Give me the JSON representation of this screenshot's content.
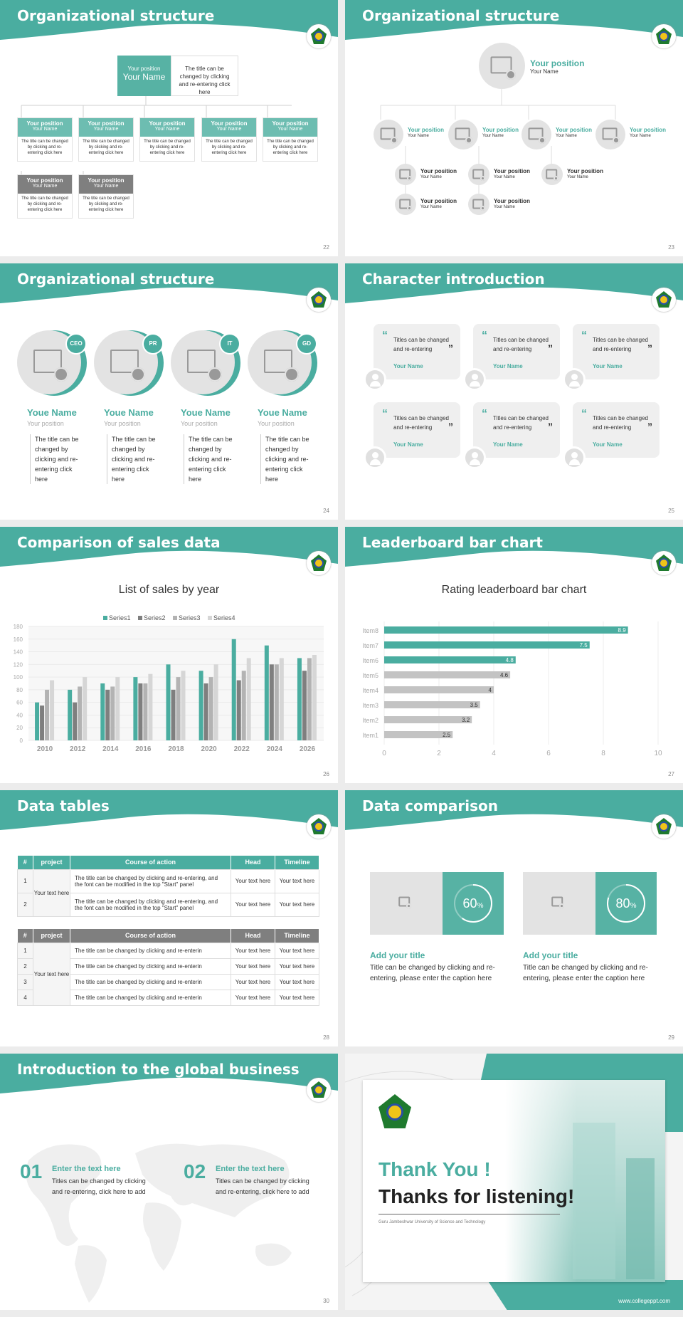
{
  "s22": {
    "title": "Organizational structure",
    "page": "22",
    "top_pos": "Your position",
    "top_name": "Your Name",
    "top_text": "The title can be changed by clicking and re-entering click here",
    "cards": [
      {
        "pos": "Your position",
        "name": "Your Name",
        "text": "The title can be changed by clicking and re-entering click here"
      },
      {
        "pos": "Your position",
        "name": "Your Name",
        "text": "The title can be changed by clicking and re-entering click here"
      },
      {
        "pos": "Your position",
        "name": "Your Name",
        "text": "The title can be changed by clicking and re-entering click here"
      },
      {
        "pos": "Your position",
        "name": "Your Name",
        "text": "The title can be changed by clicking and re-entering click here"
      },
      {
        "pos": "Your position",
        "name": "Your Name",
        "text": "The title can be changed by clicking and re-entering click here"
      }
    ],
    "gcards": [
      {
        "pos": "Your position",
        "name": "Your Name",
        "text": "The title can be changed by clicking and re-entering click here"
      },
      {
        "pos": "Your position",
        "name": "Your Name",
        "text": "The title can be changed by clicking and re-entering click here"
      }
    ]
  },
  "s23": {
    "title": "Organizational structure",
    "page": "23",
    "top_pos": "Your position",
    "top_name": "Your Name",
    "row": [
      {
        "pos": "Your position",
        "name": "Your Name"
      },
      {
        "pos": "Your position",
        "name": "Your Name"
      },
      {
        "pos": "Your position",
        "name": "Your Name"
      },
      {
        "pos": "Your position",
        "name": "Your Name"
      }
    ],
    "sub": [
      {
        "pos": "Your position",
        "name": "Your Name"
      },
      {
        "pos": "Your position",
        "name": "Your Name"
      },
      {
        "pos": "Your position",
        "name": "Your Name"
      },
      {
        "pos": "Your position",
        "name": "Your Name"
      },
      {
        "pos": "Your position",
        "name": "Your Name"
      }
    ]
  },
  "s24": {
    "title": "Organizational structure",
    "page": "24",
    "people": [
      {
        "badge": "CEO",
        "name": "Youe Name",
        "pos": "Your position",
        "text": "The title can be changed by clicking and re-entering click here"
      },
      {
        "badge": "PR",
        "name": "Youe Name",
        "pos": "Your position",
        "text": "The title can be changed by clicking and re-entering click here"
      },
      {
        "badge": "IT",
        "name": "Youe Name",
        "pos": "Your position",
        "text": "The title can be changed by clicking and re-entering click here"
      },
      {
        "badge": "GD",
        "name": "Youe Name",
        "pos": "Your position",
        "text": "The title can be changed by clicking and re-entering click here"
      }
    ]
  },
  "s25": {
    "title": "Character introduction",
    "page": "25",
    "quote_open": "“",
    "quote_close": "”",
    "cards": [
      {
        "text": "Titles can be changed and re-entering",
        "name": "Your Name"
      },
      {
        "text": "Titles can be changed and re-entering",
        "name": "Your Name"
      },
      {
        "text": "Titles can be changed and re-entering",
        "name": "Your Name"
      },
      {
        "text": "Titles can be changed and re-entering",
        "name": "Your Name"
      },
      {
        "text": "Titles can be changed and re-entering",
        "name": "Your Name"
      },
      {
        "text": "Titles can be changed and re-entering",
        "name": "Your Name"
      }
    ]
  },
  "s26": {
    "title": "Comparison of sales data",
    "page": "26"
  },
  "s27": {
    "title": "Leaderboard bar chart",
    "page": "27"
  },
  "s28": {
    "title": "Data tables",
    "page": "28",
    "t1": {
      "headers": [
        "#",
        "project",
        "Course of action",
        "Head",
        "Timeline"
      ],
      "project": "Your text here",
      "rows": [
        {
          "n": "1",
          "course": "The title can be changed by clicking and re-entering, and the font can be modified in the top \"Start\" panel",
          "head": "Your text here",
          "time": "Your text here"
        },
        {
          "n": "2",
          "course": "The title can be changed by clicking and re-entering, and the font can be modified in the top \"Start\" panel",
          "head": "Your text here",
          "time": "Your text here"
        }
      ]
    },
    "t2": {
      "headers": [
        "#",
        "project",
        "Course of action",
        "Head",
        "Timeline"
      ],
      "project": "Your text here",
      "rows": [
        {
          "n": "1",
          "course": "The title can be changed by clicking and re-enterin",
          "head": "Your text here",
          "time": "Your text here"
        },
        {
          "n": "2",
          "course": "The title can be changed by clicking and re-enterin",
          "head": "Your text here",
          "time": "Your text here"
        },
        {
          "n": "3",
          "course": "The title can be changed by clicking and re-enterin",
          "head": "Your text here",
          "time": "Your text here"
        },
        {
          "n": "4",
          "course": "The title can be changed by clicking and re-enterin",
          "head": "Your text here",
          "time": "Your text here"
        }
      ]
    }
  },
  "s29": {
    "title": "Data comparison",
    "page": "29",
    "items": [
      {
        "pct": "60",
        "sign": "%",
        "progress": 0.6,
        "title": "Add your title",
        "text": "Title can be changed by clicking and re-entering, please enter the caption here"
      },
      {
        "pct": "80",
        "sign": "%",
        "progress": 0.8,
        "title": "Add your title",
        "text": "Title can be changed by clicking and re-entering, please enter the caption here"
      }
    ]
  },
  "s30": {
    "title": "Introduction to the global business",
    "page": "30",
    "items": [
      {
        "num": "01",
        "head": "Enter the text here",
        "text": "Titles can be changed by clicking and re-entering, click here to add"
      },
      {
        "num": "02",
        "head": "Enter the text here",
        "text": "Titles can be changed by clicking and re-entering, click here to add"
      }
    ]
  },
  "s31": {
    "thank": "Thank You !",
    "thanks": "Thanks for listening!",
    "uni": "Guru Jambeshwar University of Science and Technology",
    "site": "www.collegeppt.com"
  },
  "chart_data": [
    {
      "type": "bar",
      "title": "List of sales by year",
      "categories": [
        "2010",
        "2012",
        "2014",
        "2016",
        "2018",
        "2020",
        "2022",
        "2024",
        "2026"
      ],
      "series": [
        {
          "name": "Series1",
          "values": [
            60,
            80,
            90,
            100,
            120,
            110,
            160,
            150,
            130
          ]
        },
        {
          "name": "Series2",
          "values": [
            55,
            60,
            80,
            90,
            80,
            90,
            95,
            120,
            110
          ]
        },
        {
          "name": "Series3",
          "values": [
            80,
            85,
            85,
            90,
            100,
            100,
            110,
            120,
            130
          ]
        },
        {
          "name": "Series4",
          "values": [
            95,
            100,
            100,
            105,
            110,
            120,
            130,
            130,
            135
          ]
        }
      ],
      "yticks": [
        "0",
        "20",
        "40",
        "60",
        "80",
        "100",
        "120",
        "140",
        "160",
        "180"
      ],
      "ylim": [
        0,
        180
      ],
      "colors": [
        "#4aada0",
        "#7f7f7f",
        "#b3b3b3",
        "#d6d6d6"
      ],
      "legend": "top"
    },
    {
      "type": "bar",
      "orientation": "horizontal",
      "title": "Rating leaderboard bar chart",
      "categories": [
        "Item8",
        "Item7",
        "Item6",
        "Item5",
        "Item4",
        "Item3",
        "Item2",
        "Item1"
      ],
      "values": [
        8.9,
        7.5,
        4.8,
        4.6,
        4,
        3.5,
        3.2,
        2.5
      ],
      "labels": [
        "8.9",
        "7.5",
        "4.8",
        "4.6",
        "4",
        "3.5",
        "3.2",
        "2.5"
      ],
      "xticks": [
        "0",
        "2",
        "4",
        "6",
        "8",
        "10"
      ],
      "xlim": [
        0,
        10
      ],
      "colors": [
        "#4aada0",
        "#c3c3c3"
      ]
    }
  ]
}
